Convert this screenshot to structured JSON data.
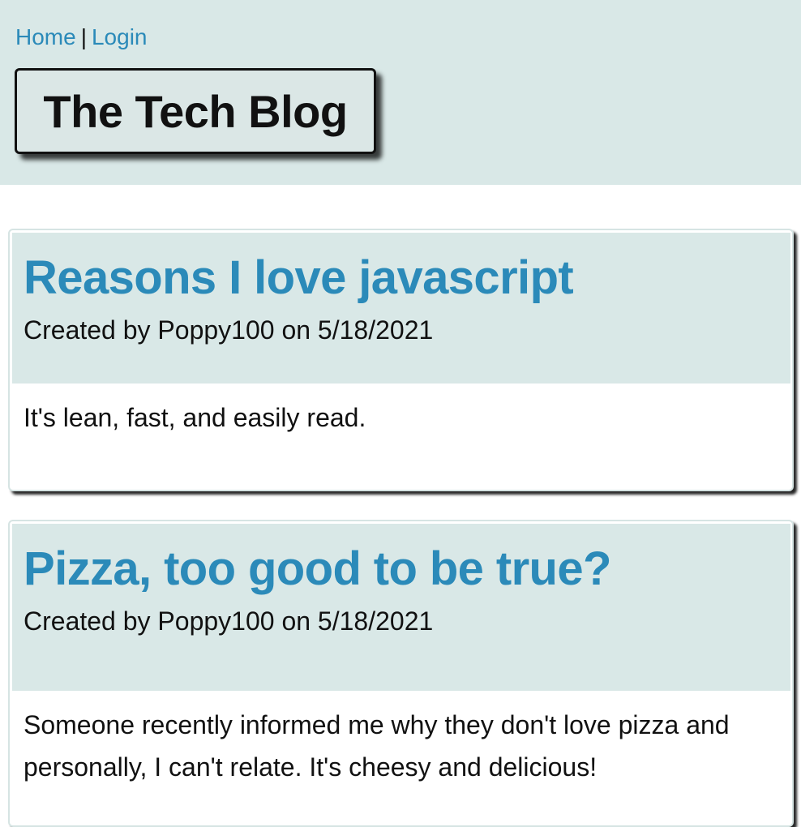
{
  "nav": {
    "home_label": "Home",
    "separator": "|",
    "login_label": "Login"
  },
  "site": {
    "title": "The Tech Blog"
  },
  "posts": [
    {
      "title": "Reasons I love javascript",
      "meta": "Created by Poppy100 on 5/18/2021",
      "body": "It's lean, fast, and easily read."
    },
    {
      "title": "Pizza, too good to be true?",
      "meta": "Created by Poppy100 on 5/18/2021",
      "body": "Someone recently informed me why they don't love pizza and personally, I can't relate. It's cheesy and delicious!"
    }
  ],
  "colors": {
    "header_bg": "#d9e8e7",
    "link": "#2b8ab9",
    "text": "#111111"
  }
}
